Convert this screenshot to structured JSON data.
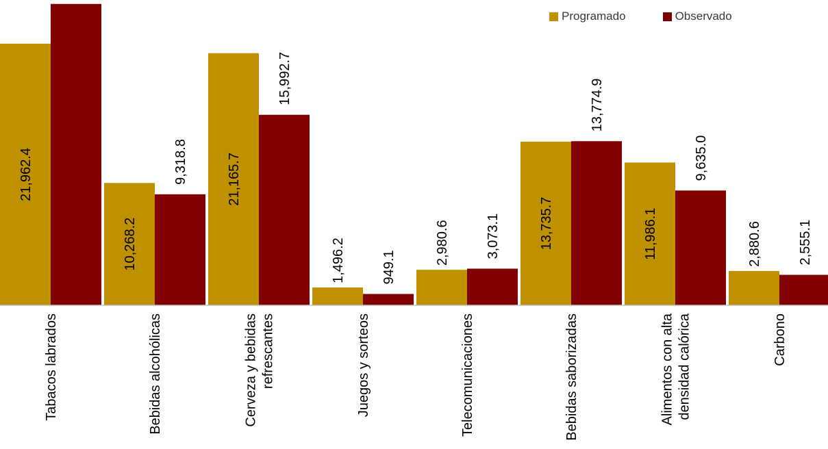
{
  "chart_data": {
    "type": "bar",
    "categories": [
      [
        "Tabacos labrados"
      ],
      [
        "Bebidas alcohólicas"
      ],
      [
        "Cerveza y bebidas",
        "refrescantes"
      ],
      [
        "Juegos y sorteos"
      ],
      [
        "Telecomunicaciones"
      ],
      [
        "Bebidas saborizadas"
      ],
      [
        "Alimentos con alta",
        "densidad calórica"
      ],
      [
        "Carbono"
      ]
    ],
    "series": [
      {
        "name": "Programado",
        "color": "#BF9000",
        "values": [
          21962.4,
          10268.2,
          21165.7,
          1496.2,
          2980.6,
          13735.7,
          11986.1,
          2880.6
        ],
        "labels": [
          "21,962.4",
          "10,268.2",
          "21,165.7",
          "1,496.2",
          "2,980.6",
          "13,735.7",
          "11,986.1",
          "2,880.6"
        ]
      },
      {
        "name": "Observado",
        "color": "#800000",
        "values": [
          25300,
          9318.8,
          15992.7,
          949.1,
          3073.1,
          13774.9,
          9635.0,
          2555.1
        ],
        "labels": [
          "",
          "9,318.8",
          "15,992.7",
          "949.1",
          "3,073.1",
          "13,774.9",
          "9,635.0",
          "2,555.1"
        ]
      }
    ],
    "ylim": [
      0,
      25400
    ],
    "grid": false,
    "legend_position": "top-right"
  }
}
